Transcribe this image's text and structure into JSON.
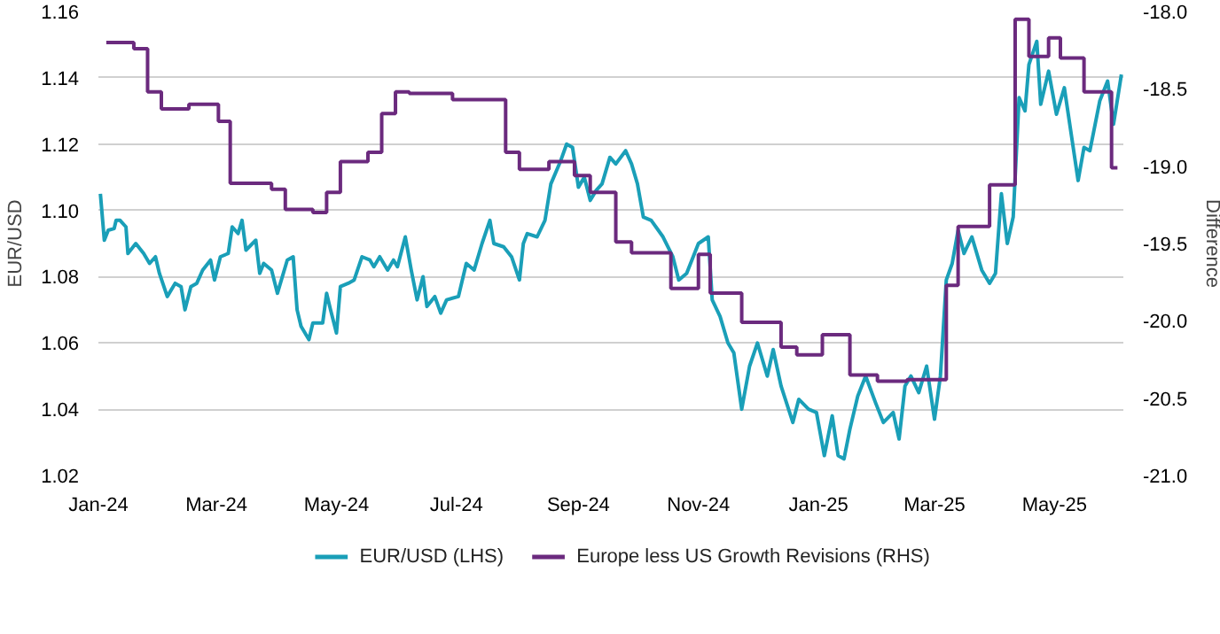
{
  "chart_data": {
    "type": "line",
    "xlabel": null,
    "ylabel": "EUR/USD",
    "y2label": "Difference",
    "xlim": [
      "2024-01-01",
      "2025-06-05"
    ],
    "xticks": [
      {
        "value": "2024-01-01",
        "label": "Jan-24"
      },
      {
        "value": "2024-03-01",
        "label": "Mar-24"
      },
      {
        "value": "2024-05-01",
        "label": "May-24"
      },
      {
        "value": "2024-07-01",
        "label": "Jul-24"
      },
      {
        "value": "2024-09-01",
        "label": "Sep-24"
      },
      {
        "value": "2024-11-01",
        "label": "Nov-24"
      },
      {
        "value": "2025-01-01",
        "label": "Jan-25"
      },
      {
        "value": "2025-03-01",
        "label": "Mar-25"
      },
      {
        "value": "2025-05-01",
        "label": "May-25"
      }
    ],
    "ylim": [
      1.02,
      1.16
    ],
    "yticks": [
      1.02,
      1.04,
      1.06,
      1.08,
      {
        "value": 1.1,
        "label": "1.10"
      },
      1.12,
      1.14,
      1.16
    ],
    "y2lim": [
      -21,
      -18
    ],
    "y2ticks": [
      {
        "value": -21,
        "label": "-21.0"
      },
      -20.5,
      {
        "value": -20,
        "label": "-20.0"
      },
      -19.5,
      {
        "value": -19,
        "label": "-19.0"
      },
      -18.5,
      {
        "value": -18,
        "label": "-18.0"
      }
    ],
    "grid": "y",
    "legend": "bottom",
    "series": [
      {
        "name": "EUR/USD (LHS)",
        "color": "#1a9fb8",
        "x": [
          "2024-01-02",
          "2024-01-04",
          "2024-01-06",
          "2024-01-09",
          "2024-01-10",
          "2024-01-12",
          "2024-01-15",
          "2024-01-16",
          "2024-01-20",
          "2024-01-24",
          "2024-01-27",
          "2024-01-30",
          "2024-02-01",
          "2024-02-05",
          "2024-02-09",
          "2024-02-12",
          "2024-02-14",
          "2024-02-17",
          "2024-02-20",
          "2024-02-23",
          "2024-02-27",
          "2024-02-29",
          "2024-03-03",
          "2024-03-07",
          "2024-03-09",
          "2024-03-12",
          "2024-03-14",
          "2024-03-16",
          "2024-03-21",
          "2024-03-23",
          "2024-03-25",
          "2024-03-29",
          "2024-04-01",
          "2024-04-06",
          "2024-04-09",
          "2024-04-11",
          "2024-04-13",
          "2024-04-17",
          "2024-04-19",
          "2024-04-24",
          "2024-04-26",
          "2024-04-28",
          "2024-05-01",
          "2024-05-03",
          "2024-05-07",
          "2024-05-10",
          "2024-05-14",
          "2024-05-18",
          "2024-05-20",
          "2024-05-23",
          "2024-05-27",
          "2024-05-30",
          "2024-06-01",
          "2024-06-05",
          "2024-06-08",
          "2024-06-11",
          "2024-06-14",
          "2024-06-16",
          "2024-06-20",
          "2024-06-23",
          "2024-06-26",
          "2024-07-02",
          "2024-07-06",
          "2024-07-10",
          "2024-07-14",
          "2024-07-18",
          "2024-07-20",
          "2024-07-25",
          "2024-07-29",
          "2024-08-02",
          "2024-08-04",
          "2024-08-06",
          "2024-08-11",
          "2024-08-15",
          "2024-08-18",
          "2024-08-23",
          "2024-08-26",
          "2024-08-29",
          "2024-09-01",
          "2024-09-04",
          "2024-09-07",
          "2024-09-10",
          "2024-09-13",
          "2024-09-17",
          "2024-09-20",
          "2024-09-25",
          "2024-09-28",
          "2024-10-01",
          "2024-10-04",
          "2024-10-08",
          "2024-10-14",
          "2024-10-19",
          "2024-10-22",
          "2024-10-26",
          "2024-11-01",
          "2024-11-06",
          "2024-11-08",
          "2024-11-12",
          "2024-11-16",
          "2024-11-19",
          "2024-11-23",
          "2024-11-27",
          "2024-12-01",
          "2024-12-06",
          "2024-12-09",
          "2024-12-13",
          "2024-12-19",
          "2024-12-22",
          "2024-12-27",
          "2024-12-31",
          "2025-01-04",
          "2025-01-08",
          "2025-01-11",
          "2025-01-14",
          "2025-01-17",
          "2025-01-21",
          "2025-01-25",
          "2025-01-30",
          "2025-02-03",
          "2025-02-08",
          "2025-02-11",
          "2025-02-14",
          "2025-02-17",
          "2025-02-21",
          "2025-02-25",
          "2025-03-01",
          "2025-03-04",
          "2025-03-07",
          "2025-03-10",
          "2025-03-13",
          "2025-03-16",
          "2025-03-20",
          "2025-03-25",
          "2025-03-29",
          "2025-04-01",
          "2025-04-04",
          "2025-04-07",
          "2025-04-10",
          "2025-04-13",
          "2025-04-16",
          "2025-04-18",
          "2025-04-22",
          "2025-04-24",
          "2025-04-28",
          "2025-05-02",
          "2025-05-06",
          "2025-05-10",
          "2025-05-13",
          "2025-05-16",
          "2025-05-19",
          "2025-05-24",
          "2025-05-28",
          "2025-05-31",
          "2025-06-04"
        ],
        "values": [
          1.105,
          1.091,
          1.094,
          1.0945,
          1.097,
          1.097,
          1.095,
          1.087,
          1.09,
          1.087,
          1.084,
          1.086,
          1.081,
          1.074,
          1.078,
          1.077,
          1.07,
          1.077,
          1.078,
          1.082,
          1.085,
          1.079,
          1.086,
          1.087,
          1.095,
          1.093,
          1.097,
          1.088,
          1.091,
          1.081,
          1.084,
          1.082,
          1.075,
          1.085,
          1.086,
          1.07,
          1.065,
          1.061,
          1.066,
          1.066,
          1.075,
          1.07,
          1.063,
          1.077,
          1.078,
          1.079,
          1.086,
          1.085,
          1.083,
          1.086,
          1.082,
          1.085,
          1.083,
          1.092,
          1.082,
          1.073,
          1.08,
          1.071,
          1.074,
          1.069,
          1.073,
          1.074,
          1.084,
          1.082,
          1.09,
          1.097,
          1.09,
          1.089,
          1.086,
          1.079,
          1.09,
          1.093,
          1.092,
          1.097,
          1.108,
          1.115,
          1.12,
          1.119,
          1.107,
          1.11,
          1.103,
          1.106,
          1.108,
          1.116,
          1.114,
          1.118,
          1.114,
          1.108,
          1.098,
          1.097,
          1.092,
          1.086,
          1.079,
          1.081,
          1.09,
          1.092,
          1.073,
          1.068,
          1.06,
          1.057,
          1.04,
          1.053,
          1.06,
          1.05,
          1.058,
          1.047,
          1.036,
          1.043,
          1.04,
          1.039,
          1.026,
          1.038,
          1.026,
          1.025,
          1.034,
          1.044,
          1.05,
          1.042,
          1.036,
          1.039,
          1.031,
          1.047,
          1.05,
          1.045,
          1.053,
          1.037,
          1.05,
          1.079,
          1.084,
          1.094,
          1.087,
          1.092,
          1.082,
          1.078,
          1.081,
          1.105,
          1.09,
          1.098,
          1.134,
          1.13,
          1.144,
          1.151,
          1.132,
          1.142,
          1.129,
          1.137,
          1.121,
          1.109,
          1.119,
          1.118,
          1.133,
          1.139,
          1.126,
          1.141
        ]
      },
      {
        "name": "Europe less US Growth Revisions (RHS)",
        "color": "#6b2a7e",
        "type": "step",
        "axis": "y2",
        "x": [
          "2024-01-05",
          "2024-01-19",
          "2024-01-26",
          "2024-02-02",
          "2024-02-16",
          "2024-03-02",
          "2024-03-08",
          "2024-03-29",
          "2024-04-05",
          "2024-04-19",
          "2024-04-26",
          "2024-05-03",
          "2024-05-17",
          "2024-05-24",
          "2024-05-31",
          "2024-06-07",
          "2024-06-29",
          "2024-07-26",
          "2024-08-02",
          "2024-08-17",
          "2024-08-30",
          "2024-09-07",
          "2024-09-20",
          "2024-09-28",
          "2024-10-18",
          "2024-11-01",
          "2024-11-07",
          "2024-11-23",
          "2024-12-13",
          "2024-12-21",
          "2025-01-03",
          "2025-01-17",
          "2025-01-31",
          "2025-02-15",
          "2025-03-07",
          "2025-03-13",
          "2025-03-29",
          "2025-04-11",
          "2025-04-18",
          "2025-04-28",
          "2025-05-04",
          "2025-05-16",
          "2025-05-30",
          "2025-06-02"
        ],
        "values": [
          -18.2,
          -18.24,
          -18.52,
          -18.63,
          -18.6,
          -18.71,
          -19.11,
          -19.15,
          -19.28,
          -19.3,
          -19.17,
          -18.97,
          -18.91,
          -18.66,
          -18.52,
          -18.53,
          -18.57,
          -18.91,
          -19.02,
          -18.97,
          -19.06,
          -19.17,
          -19.49,
          -19.56,
          -19.79,
          -19.57,
          -19.82,
          -20.01,
          -20.17,
          -20.22,
          -20.09,
          -20.35,
          -20.39,
          -20.38,
          -19.77,
          -19.39,
          -19.12,
          -18.05,
          -18.29,
          -18.17,
          -18.3,
          -18.52,
          -19.01,
          -19.01
        ]
      }
    ]
  }
}
